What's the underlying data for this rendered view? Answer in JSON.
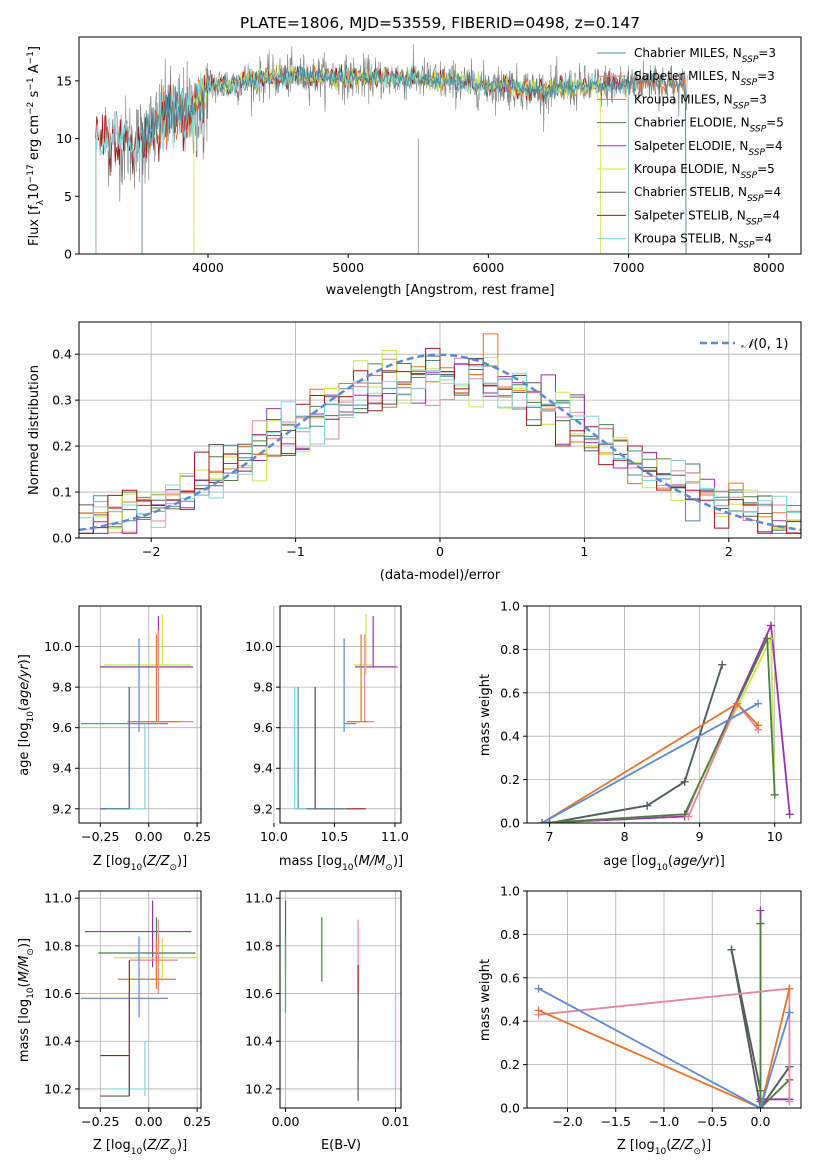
{
  "title": "PLATE=1806, MJD=53559, FIBERID=0498, z=0.147",
  "colors": {
    "chabrier_miles": "#4c8c9c",
    "salpeter_miles": "#e8849c",
    "kroupa_miles": "#e8732a",
    "chabrier_elodie": "#4f7d46",
    "salpeter_elodie": "#9b30b0",
    "kroupa_elodie": "#c9e84a",
    "chabrier_stelib": "#5a5a5a",
    "salpeter_stelib": "#a01818",
    "kroupa_stelib": "#80d8e0",
    "normal": "#5b8ad6",
    "cornflower": "#6a8fe0"
  },
  "chart_data": [
    {
      "type": "line",
      "id": "spectrum",
      "xlabel": "wavelength [Angstrom, rest frame]",
      "ylabel": "Flux [f_λ 10^-17 erg cm^-2 s^-1 A^-1]",
      "xlim": [
        3080,
        8230
      ],
      "ylim": [
        0,
        18.8
      ],
      "xticks": [
        4000,
        5000,
        6000,
        7000,
        8000
      ],
      "yticks": [
        0,
        5,
        10,
        15
      ],
      "grid": false,
      "legend_position": "right",
      "legend": [
        {
          "label": "Chabrier MILES, N_SSP=3",
          "color": "#4c8c9c"
        },
        {
          "label": "Salpeter MILES, N_SSP=3",
          "color": "#e8849c"
        },
        {
          "label": "Kroupa MILES, N_SSP=3",
          "color": "#e8732a"
        },
        {
          "label": "Chabrier ELODIE, N_SSP=5",
          "color": "#4f7d46"
        },
        {
          "label": "Salpeter ELODIE, N_SSP=4",
          "color": "#9b30b0"
        },
        {
          "label": "Kroupa ELODIE, N_SSP=5",
          "color": "#c9e84a"
        },
        {
          "label": "Chabrier STELIB, N_SSP=4",
          "color": "#5a5a5a"
        },
        {
          "label": "Salpeter STELIB, N_SSP=4",
          "color": "#a01818"
        },
        {
          "label": "Kroupa STELIB, N_SSP=4",
          "color": "#80d8e0"
        }
      ],
      "model_ranges": {
        "MILES": [
          3530,
          7410
        ],
        "ELODIE": [
          3900,
          6800
        ],
        "STELIB": [
          3200,
          7000
        ]
      },
      "continuum": [
        [
          3260,
          10.0
        ],
        [
          3500,
          9.5
        ],
        [
          3700,
          12.0
        ],
        [
          3900,
          12.5
        ],
        [
          4000,
          14.5
        ],
        [
          4300,
          15.0
        ],
        [
          4600,
          15.5
        ],
        [
          5000,
          15.3
        ],
        [
          5500,
          15.2
        ],
        [
          6000,
          14.6
        ],
        [
          6400,
          14.2
        ],
        [
          6800,
          14.6
        ],
        [
          7200,
          15.0
        ],
        [
          7400,
          14.4
        ]
      ]
    },
    {
      "type": "histogram",
      "id": "residuals",
      "xlabel": "(data-model)/error",
      "ylabel": "Normed distribution",
      "xlim": [
        -2.5,
        2.5
      ],
      "ylim": [
        0,
        0.47
      ],
      "xticks": [
        -2,
        -1,
        0,
        1,
        2
      ],
      "yticks": [
        0.0,
        0.1,
        0.2,
        0.3,
        0.4
      ],
      "grid": true,
      "bin_width": 0.1,
      "bin_start": -2.5,
      "legend": [
        {
          "label": "N(0,1)",
          "style": "dashed",
          "color": "#5b8ad6"
        }
      ],
      "legend_position": "top-right",
      "gaussian": {
        "mean": 0,
        "sigma": 1
      }
    },
    {
      "type": "errorbar",
      "id": "age_vs_Z",
      "xlabel": "Z [log10(Z/Z⊙)]",
      "ylabel": "age [log10(age/yr)]",
      "xlim": [
        -0.36,
        0.27
      ],
      "ylim": [
        9.13,
        10.2
      ],
      "xticks": [
        -0.25,
        0.0,
        0.25
      ],
      "yticks": [
        9.2,
        9.4,
        9.6,
        9.8,
        10.0
      ],
      "grid": true,
      "points": [
        {
          "x": 0.05,
          "xerr": [
            0.3,
            0.18
          ],
          "y": 9.9,
          "yerr": [
            0,
            0.25
          ],
          "color": "#9b30b0"
        },
        {
          "x": 0.07,
          "xerr": [
            0.3,
            0.15
          ],
          "y": 9.91,
          "yerr": [
            0,
            0.25
          ],
          "color": "#c9e84a"
        },
        {
          "x": 0.05,
          "xerr": [
            0.12,
            0.18
          ],
          "y": 9.63,
          "yerr": [
            0,
            0.45
          ],
          "color": "#e8849c"
        },
        {
          "x": 0.04,
          "xerr": [
            0.15,
            0.12
          ],
          "y": 9.63,
          "yerr": [
            0,
            0.43
          ],
          "color": "#e8732a"
        },
        {
          "x": -0.05,
          "xerr": [
            0.3,
            0.15
          ],
          "y": 9.62,
          "yerr": [
            0.04,
            0.42
          ],
          "color": "#5b8ad6"
        },
        {
          "x": -0.1,
          "xerr": [
            0.15,
            0.0
          ],
          "y": 9.2,
          "yerr": [
            0,
            0.6
          ],
          "color": "#5a5a5a"
        },
        {
          "x": -0.1,
          "xerr": [
            0.15,
            0.0
          ],
          "y": 9.2,
          "yerr": [
            0,
            0.6
          ],
          "color": "#a01818"
        },
        {
          "x": -0.02,
          "xerr": [
            0.2,
            0.0
          ],
          "y": 9.2,
          "yerr": [
            0,
            0.42
          ],
          "color": "#80d8e0"
        },
        {
          "x": -0.1,
          "xerr": [
            0.15,
            0.0
          ],
          "y": 9.2,
          "yerr": [
            0,
            0.6
          ],
          "color": "#4c8c9c"
        }
      ]
    },
    {
      "type": "errorbar",
      "id": "age_vs_mass",
      "xlabel": "mass [log10(M/M⊙)]",
      "ylabel": "",
      "xlim": [
        10.05,
        11.05
      ],
      "ylim": [
        9.13,
        10.2
      ],
      "xticks": [
        10.0,
        10.5,
        11.0
      ],
      "yticks": [
        9.2,
        9.4,
        9.6,
        9.8,
        10.0
      ],
      "grid": true,
      "points": [
        {
          "x": 10.82,
          "xerr": [
            0.15,
            0.2
          ],
          "y": 9.9,
          "yerr": [
            0,
            0.25
          ],
          "color": "#9b30b0"
        },
        {
          "x": 10.76,
          "xerr": [
            0.1,
            0.05
          ],
          "y": 9.91,
          "yerr": [
            0.05,
            0.25
          ],
          "color": "#c9e84a"
        },
        {
          "x": 10.75,
          "xerr": [
            0.12,
            0.08
          ],
          "y": 9.63,
          "yerr": [
            0,
            0.43
          ],
          "color": "#e8849c"
        },
        {
          "x": 10.72,
          "xerr": [
            0.12,
            0.05
          ],
          "y": 9.63,
          "yerr": [
            0,
            0.43
          ],
          "color": "#e8732a"
        },
        {
          "x": 10.58,
          "xerr": [
            0.0,
            0.1
          ],
          "y": 9.62,
          "yerr": [
            0.04,
            0.42
          ],
          "color": "#5b8ad6"
        },
        {
          "x": 10.34,
          "xerr": [
            0.16,
            0.42
          ],
          "y": 9.2,
          "yerr": [
            0,
            0.6
          ],
          "color": "#a01818"
        },
        {
          "x": 10.2,
          "xerr": [
            0.0,
            0.4
          ],
          "y": 9.2,
          "yerr": [
            0,
            0.6
          ],
          "color": "#4c8c9c"
        },
        {
          "x": 10.17,
          "xerr": [
            0.0,
            0.1
          ],
          "y": 9.2,
          "yerr": [
            0,
            0.6
          ],
          "color": "#80d8e0"
        },
        {
          "x": 10.34,
          "xerr": [
            0.0,
            0.0
          ],
          "y": 9.2,
          "yerr": [
            0,
            0.6
          ],
          "color": "#5a5a5a"
        }
      ]
    },
    {
      "type": "line",
      "id": "mass_weight_vs_age",
      "xlabel": "age [log10(age/yr)]",
      "ylabel": "mass weight",
      "xlim": [
        6.7,
        10.35
      ],
      "ylim": [
        0,
        1.0
      ],
      "xticks": [
        7,
        8,
        9,
        10
      ],
      "yticks": [
        0.0,
        0.2,
        0.4,
        0.6,
        0.8,
        1.0
      ],
      "grid": true,
      "series": [
        {
          "color": "#4c8c9c",
          "x": [
            7.0,
            8.3,
            8.8,
            9.3
          ],
          "y": [
            0.0,
            0.08,
            0.19,
            0.73
          ]
        },
        {
          "color": "#80d8e0",
          "x": [
            7.0,
            8.3,
            8.8,
            9.3
          ],
          "y": [
            0.0,
            0.08,
            0.19,
            0.73
          ]
        },
        {
          "color": "#5a5a5a",
          "x": [
            7.0,
            8.3,
            8.8,
            9.3
          ],
          "y": [
            0.0,
            0.08,
            0.19,
            0.73
          ]
        },
        {
          "color": "#9b30b0",
          "x": [
            6.9,
            8.8,
            9.95,
            10.2
          ],
          "y": [
            0.0,
            0.03,
            0.91,
            0.04
          ]
        },
        {
          "color": "#c9e84a",
          "x": [
            6.9,
            8.8,
            9.95,
            10.0
          ],
          "y": [
            0.0,
            0.04,
            0.85,
            0.13
          ]
        },
        {
          "color": "#4f7d46",
          "x": [
            6.9,
            8.8,
            9.9,
            10.0
          ],
          "y": [
            0.0,
            0.04,
            0.85,
            0.13
          ]
        },
        {
          "color": "#e8849c",
          "x": [
            8.85,
            9.5,
            9.78
          ],
          "y": [
            0.03,
            0.55,
            0.43
          ]
        },
        {
          "color": "#e8732a",
          "x": [
            6.9,
            9.5,
            9.78
          ],
          "y": [
            0.0,
            0.55,
            0.45
          ]
        },
        {
          "color": "#5b8ad6",
          "x": [
            6.9,
            9.78
          ],
          "y": [
            0.0,
            0.55
          ]
        }
      ]
    },
    {
      "type": "errorbar",
      "id": "mass_vs_Z",
      "xlabel": "Z [log10(Z/Z⊙)]",
      "ylabel": "mass [log10(M/M⊙)]",
      "xlim": [
        -0.36,
        0.27
      ],
      "ylim": [
        10.12,
        11.03
      ],
      "xticks": [
        -0.25,
        0.0,
        0.25
      ],
      "yticks": [
        10.2,
        10.4,
        10.6,
        10.8,
        11.0
      ],
      "grid": true,
      "points": [
        {
          "x": 0.02,
          "xerr": [
            0.35,
            0.2
          ],
          "y": 10.86,
          "yerr": [
            0.15,
            0.13
          ],
          "color": "#9b30b0"
        },
        {
          "x": 0.07,
          "xerr": [
            0.25,
            0.18
          ],
          "y": 10.75,
          "yerr": [
            0.1,
            0.08
          ],
          "color": "#c9e84a"
        },
        {
          "x": 0.04,
          "xerr": [
            0.3,
            0.2
          ],
          "y": 10.77,
          "yerr": [
            0.12,
            0.15
          ],
          "color": "#4f7d46"
        },
        {
          "x": 0.05,
          "xerr": [
            0.15,
            0.1
          ],
          "y": 10.74,
          "yerr": [
            0.14,
            0.17
          ],
          "color": "#e8849c"
        },
        {
          "x": 0.04,
          "xerr": [
            0.2,
            0.1
          ],
          "y": 10.66,
          "yerr": [
            0.04,
            0.17
          ],
          "color": "#e8732a"
        },
        {
          "x": -0.05,
          "xerr": [
            0.3,
            0.15
          ],
          "y": 10.58,
          "yerr": [
            0.08,
            0.26
          ],
          "color": "#5b8ad6"
        },
        {
          "x": -0.1,
          "xerr": [
            0.15,
            0.0
          ],
          "y": 10.34,
          "yerr": [
            0.17,
            0.4
          ],
          "color": "#a01818"
        },
        {
          "x": -0.02,
          "xerr": [
            0.2,
            0.0
          ],
          "y": 10.2,
          "yerr": [
            0.03,
            0.2
          ],
          "color": "#80d8e0"
        },
        {
          "x": -0.1,
          "xerr": [
            0.15,
            0.0
          ],
          "y": 10.17,
          "yerr": [
            0.0,
            0.44
          ],
          "color": "#5a5a5a"
        }
      ]
    },
    {
      "type": "errorbar",
      "id": "mass_vs_ebv",
      "xlabel": "E(B-V)",
      "ylabel": "",
      "xlim": [
        -0.0005,
        0.0105
      ],
      "ylim": [
        10.12,
        11.03
      ],
      "xticks": [
        0.0,
        0.01
      ],
      "xticklabels": [
        "0.00",
        "0.01"
      ],
      "yticks": [
        10.2,
        10.4,
        10.6,
        10.8,
        11.0
      ],
      "grid": true,
      "points": [
        {
          "x": 0.0,
          "y": 10.86,
          "yerr": [
            0.15,
            0.13
          ],
          "color": "#9b30b0"
        },
        {
          "x": 0.0,
          "y": 10.75,
          "yerr": [
            0.1,
            0.08
          ],
          "color": "#c9e84a"
        },
        {
          "x": 0.0,
          "y": 10.58,
          "yerr": [
            0.06,
            0.26
          ],
          "color": "#5b8ad6"
        },
        {
          "x": 0.0033,
          "y": 10.77,
          "yerr": [
            0.12,
            0.15
          ],
          "color": "#4f7d46"
        },
        {
          "x": 0.0066,
          "y": 10.74,
          "yerr": [
            0.14,
            0.17
          ],
          "color": "#e8849c"
        },
        {
          "x": 0.0066,
          "y": 10.6,
          "yerr": [
            0.28,
            0.12
          ],
          "color": "#a01818"
        },
        {
          "x": 0.0066,
          "y": 10.4,
          "yerr": [
            0.25,
            0.2
          ],
          "color": "#5a5a5a"
        },
        {
          "x": 0.01,
          "y": 10.4,
          "yerr": [
            0.2,
            0.2
          ],
          "color": "#80d8e0"
        }
      ]
    },
    {
      "type": "line",
      "id": "mass_weight_vs_Z",
      "xlabel": "Z [log10(Z/Z⊙)]",
      "ylabel": "mass weight",
      "xlim": [
        -2.42,
        0.42
      ],
      "ylim": [
        0,
        1.0
      ],
      "xticks": [
        -2.0,
        -1.5,
        -1.0,
        -0.5,
        0.0
      ],
      "yticks": [
        0.0,
        0.2,
        0.4,
        0.6,
        0.8,
        1.0
      ],
      "grid": true,
      "series": [
        {
          "color": "#4c8c9c",
          "x": [
            0.0,
            -0.3,
            0.0,
            0.3
          ],
          "y": [
            0.08,
            0.73,
            0.0,
            0.19
          ]
        },
        {
          "color": "#80d8e0",
          "x": [
            0.0,
            -0.3,
            0.0,
            0.3
          ],
          "y": [
            0.08,
            0.73,
            0.0,
            0.19
          ]
        },
        {
          "color": "#5a5a5a",
          "x": [
            0.0,
            -0.3,
            0.0,
            0.3
          ],
          "y": [
            0.08,
            0.73,
            0.0,
            0.19
          ]
        },
        {
          "color": "#9b30b0",
          "x": [
            0.0,
            0.0,
            0.0,
            0.3
          ],
          "y": [
            0.91,
            0.03,
            0.04,
            0.04
          ]
        },
        {
          "color": "#c9e84a",
          "x": [
            0.0,
            0.0,
            0.3,
            0.3
          ],
          "y": [
            0.85,
            0.0,
            0.13,
            0.13
          ]
        },
        {
          "color": "#4f7d46",
          "x": [
            0.0,
            0.0,
            0.3
          ],
          "y": [
            0.85,
            0.0,
            0.13
          ]
        },
        {
          "color": "#e8849c",
          "x": [
            -2.3,
            0.3,
            0.3
          ],
          "y": [
            0.43,
            0.55,
            0.03
          ]
        },
        {
          "color": "#e8732a",
          "x": [
            -2.3,
            0.0,
            0.3,
            0.3
          ],
          "y": [
            0.45,
            0.0,
            0.55,
            0.55
          ]
        },
        {
          "color": "#5b8ad6",
          "x": [
            -2.3,
            0.0,
            0.3,
            0.3
          ],
          "y": [
            0.55,
            0.0,
            0.44,
            0.44
          ]
        }
      ]
    }
  ]
}
